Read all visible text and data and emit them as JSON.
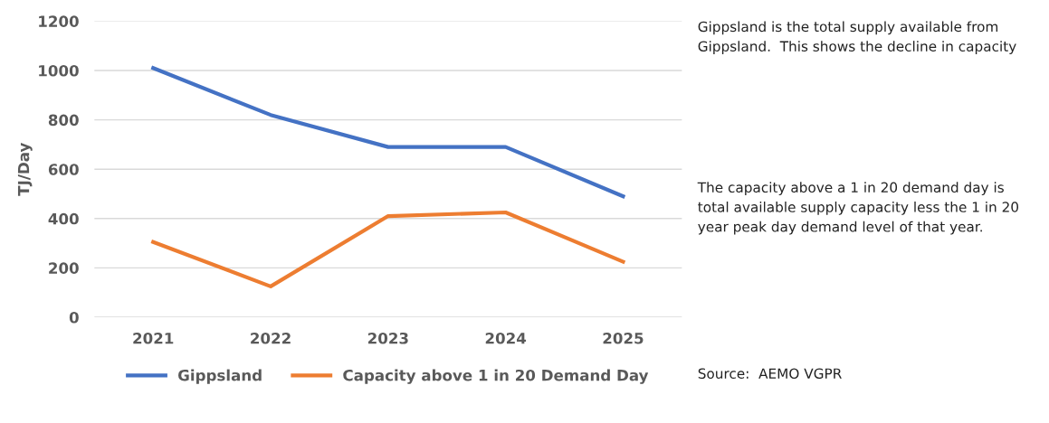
{
  "chart_data": {
    "type": "line",
    "ylabel": "TJ/Day",
    "categories": [
      "2021",
      "2022",
      "2023",
      "2024",
      "2025"
    ],
    "series": [
      {
        "name": "Gippsland",
        "color": "#4472c4",
        "values": [
          1010,
          820,
          690,
          690,
          490
        ]
      },
      {
        "name": "Capacity above 1 in 20 Demand Day",
        "color": "#ed7d31",
        "values": [
          305,
          125,
          410,
          425,
          225
        ]
      }
    ],
    "ylim": [
      0,
      1200
    ],
    "yticks": [
      0,
      200,
      400,
      600,
      800,
      1000,
      1200
    ],
    "grid": "y",
    "legend": "bottom",
    "marker": "none",
    "line_style": "solid",
    "annotations": [
      "Gippsland is the total supply available from Gippsland.  This shows the decline in capacity",
      "The capacity above a 1 in 20 demand day is total available supply capacity less the 1 in 20 year peak day demand level of that year.",
      "Source:  AEMO VGPR"
    ]
  }
}
